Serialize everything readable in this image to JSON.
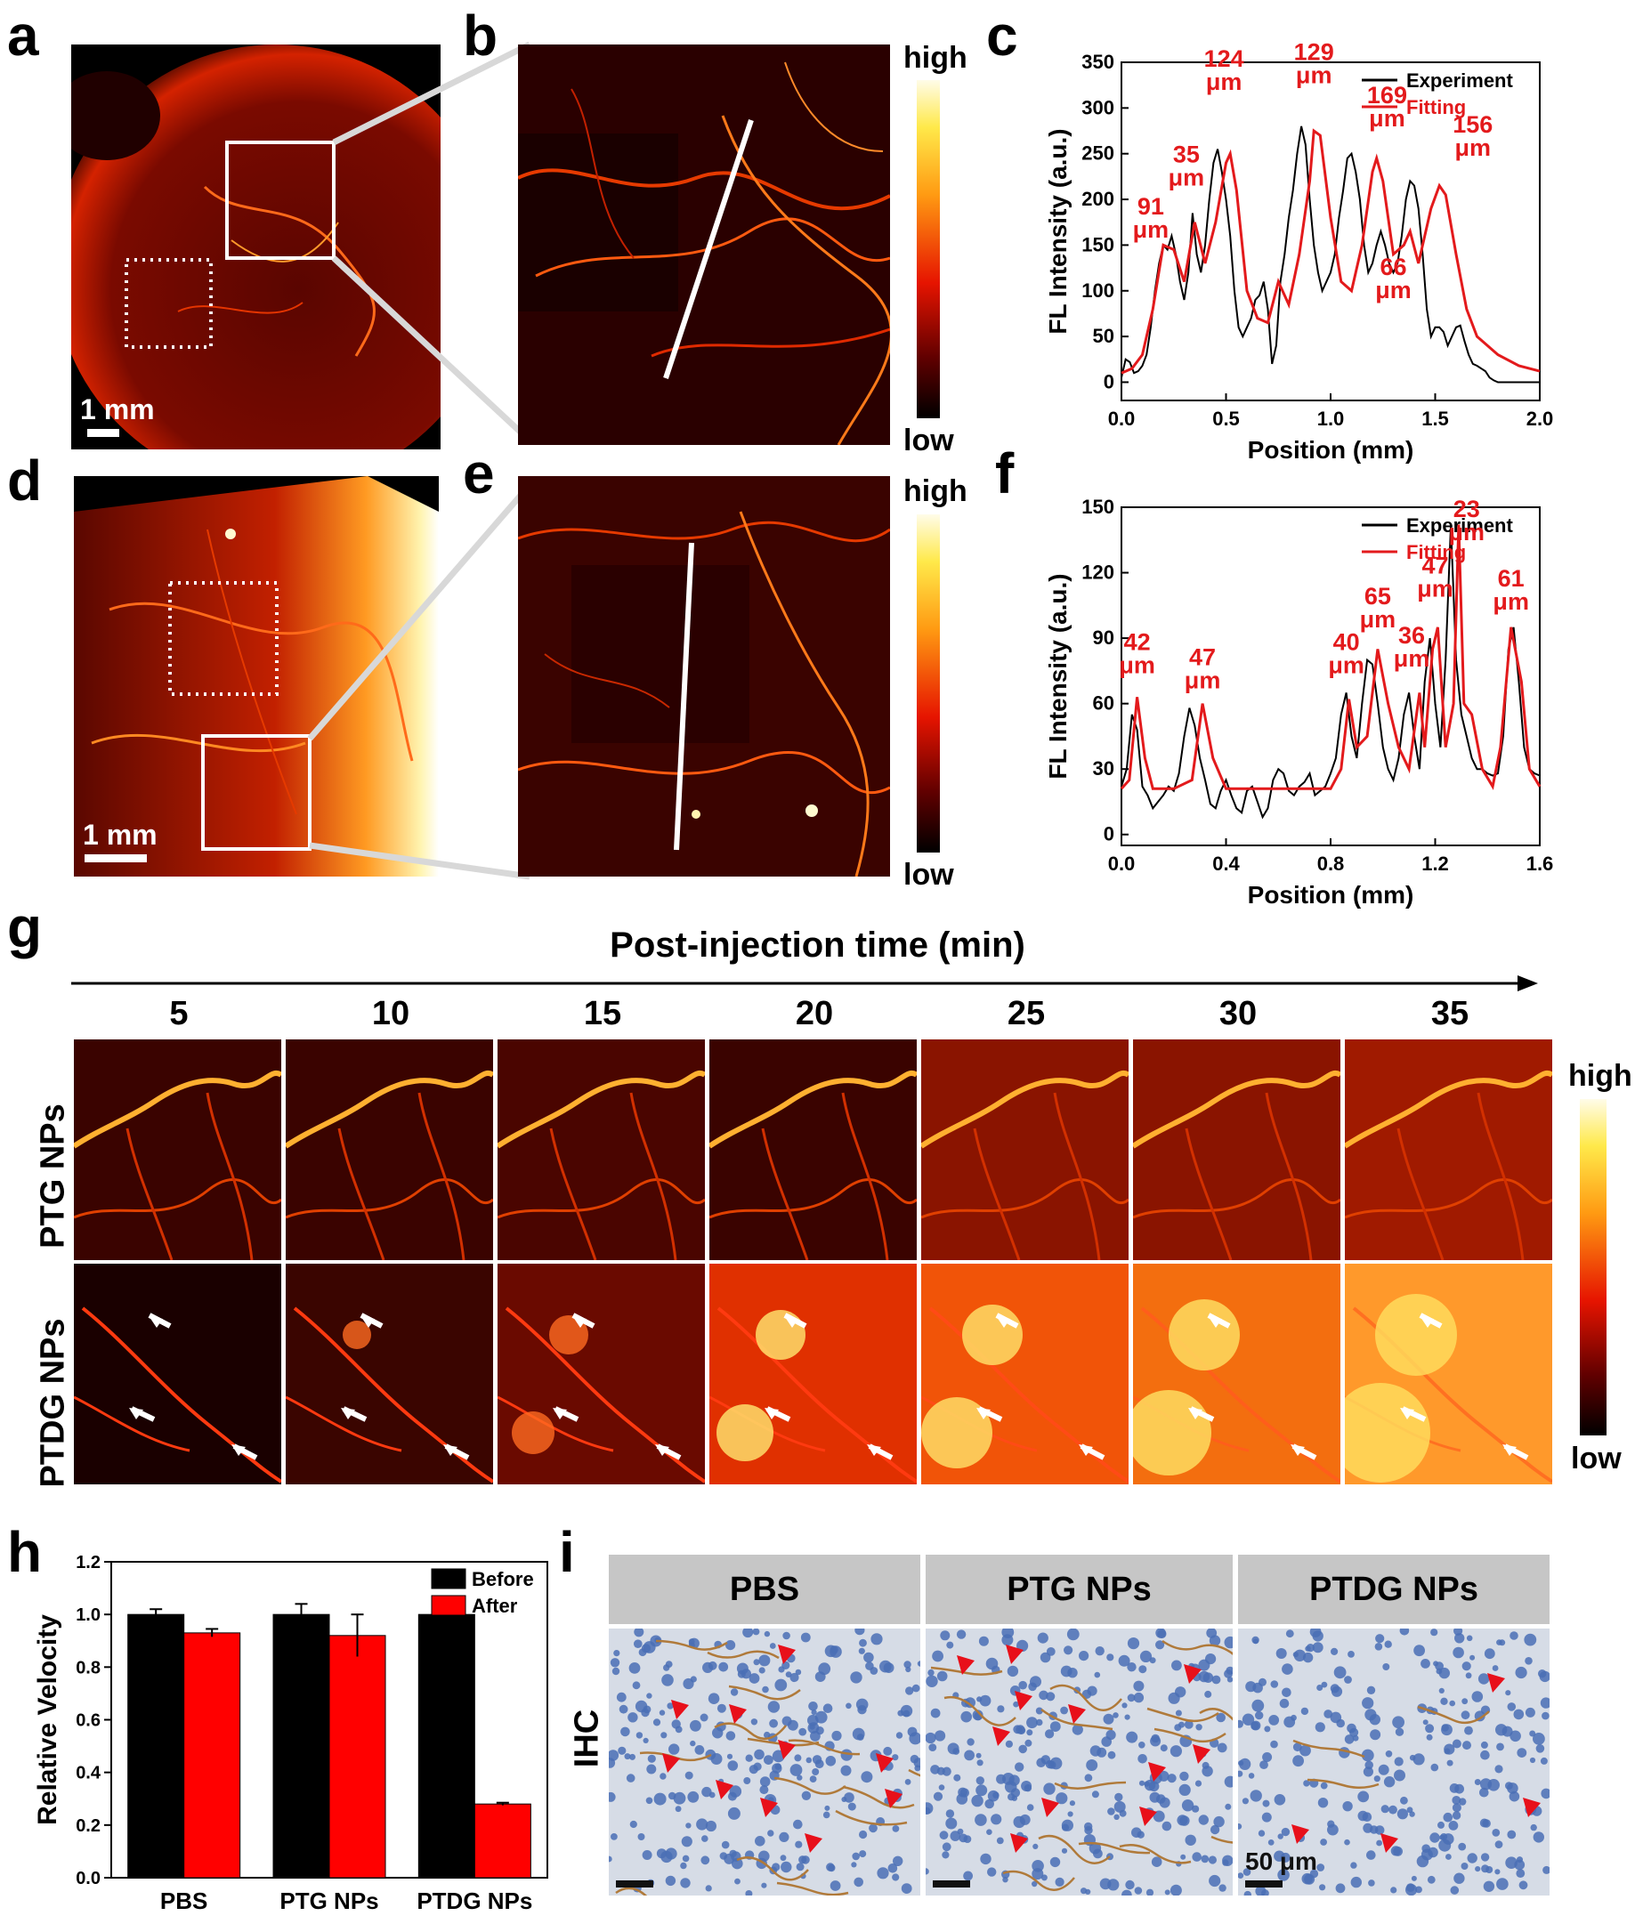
{
  "panels": {
    "a": "a",
    "b": "b",
    "c": "c",
    "d": "d",
    "e": "e",
    "f": "f",
    "g": "g",
    "h": "h",
    "i": "i"
  },
  "scalebars": {
    "a": "1 mm",
    "d": "1 mm",
    "ihc": "50 μm"
  },
  "colorbar": {
    "high": "high",
    "low": "low"
  },
  "colors": {
    "experiment": "#000000",
    "fitting": "#e31a1c",
    "annotation": "#e31a1c"
  },
  "panel_g": {
    "title": "Post-injection time (min)",
    "times": [
      "5",
      "10",
      "15",
      "20",
      "25",
      "30",
      "35"
    ],
    "rows": [
      "PTG NPs",
      "PTDG NPs"
    ]
  },
  "panel_i": {
    "columns": [
      "PBS",
      "PTG NPs",
      "PTDG NPs"
    ],
    "row_label": "IHC"
  },
  "chart_data": [
    {
      "panel": "c",
      "type": "line",
      "xlabel": "Position (mm)",
      "ylabel": "FL Intensity (a.u.)",
      "xlim": [
        0,
        2.0
      ],
      "ylim": [
        -20,
        350
      ],
      "xticks": [
        "0.0",
        "0.5",
        "1.0",
        "1.5",
        "2.0"
      ],
      "yticks": [
        "0",
        "50",
        "100",
        "150",
        "200",
        "250",
        "300",
        "350"
      ],
      "legend": [
        "Experiment",
        "Fitting"
      ],
      "annotations": [
        {
          "text": [
            "91",
            "μm"
          ],
          "x": 0.14,
          "y": 158
        },
        {
          "text": [
            "35",
            "μm"
          ],
          "x": 0.31,
          "y": 215
        },
        {
          "text": [
            "124",
            "μm"
          ],
          "x": 0.49,
          "y": 320
        },
        {
          "text": [
            "129",
            "μm"
          ],
          "x": 0.92,
          "y": 327
        },
        {
          "text": [
            "169",
            "μm"
          ],
          "x": 1.27,
          "y": 280
        },
        {
          "text": [
            "66",
            "μm"
          ],
          "x": 1.3,
          "y": 92
        },
        {
          "text": [
            "156",
            "μm"
          ],
          "x": 1.68,
          "y": 248
        }
      ],
      "series": [
        {
          "name": "Experiment",
          "x": [
            0.0,
            0.02,
            0.04,
            0.06,
            0.08,
            0.1,
            0.12,
            0.14,
            0.16,
            0.18,
            0.2,
            0.22,
            0.24,
            0.26,
            0.28,
            0.3,
            0.32,
            0.34,
            0.36,
            0.38,
            0.4,
            0.42,
            0.44,
            0.46,
            0.48,
            0.5,
            0.52,
            0.54,
            0.56,
            0.58,
            0.6,
            0.62,
            0.64,
            0.66,
            0.68,
            0.7,
            0.72,
            0.74,
            0.76,
            0.78,
            0.8,
            0.82,
            0.84,
            0.86,
            0.88,
            0.9,
            0.92,
            0.94,
            0.96,
            0.98,
            1.0,
            1.02,
            1.04,
            1.06,
            1.08,
            1.1,
            1.12,
            1.14,
            1.16,
            1.18,
            1.2,
            1.22,
            1.24,
            1.26,
            1.28,
            1.3,
            1.32,
            1.34,
            1.36,
            1.38,
            1.4,
            1.42,
            1.44,
            1.46,
            1.48,
            1.5,
            1.52,
            1.54,
            1.56,
            1.58,
            1.6,
            1.62,
            1.64,
            1.66,
            1.68,
            1.7,
            1.72,
            1.74,
            1.76,
            1.78,
            1.8,
            1.82,
            1.84,
            1.86,
            1.88,
            1.9,
            1.92,
            1.94,
            1.96,
            1.98,
            2.0
          ],
          "values": [
            5,
            25,
            22,
            10,
            12,
            18,
            30,
            60,
            100,
            130,
            150,
            145,
            160,
            140,
            110,
            90,
            120,
            185,
            140,
            120,
            150,
            200,
            240,
            255,
            230,
            200,
            160,
            100,
            60,
            50,
            60,
            70,
            90,
            95,
            110,
            80,
            20,
            40,
            110,
            140,
            180,
            210,
            250,
            280,
            260,
            200,
            150,
            120,
            100,
            110,
            120,
            140,
            180,
            210,
            245,
            250,
            230,
            200,
            150,
            120,
            130,
            150,
            165,
            150,
            130,
            120,
            130,
            160,
            200,
            220,
            215,
            190,
            140,
            80,
            50,
            60,
            60,
            55,
            40,
            50,
            60,
            62,
            45,
            30,
            20,
            18,
            15,
            12,
            5,
            2,
            0,
            0,
            0,
            0,
            0,
            0,
            0,
            0,
            0,
            0,
            0
          ]
        },
        {
          "name": "Fitting",
          "x": [
            0.0,
            0.05,
            0.1,
            0.15,
            0.2,
            0.25,
            0.3,
            0.35,
            0.4,
            0.45,
            0.5,
            0.52,
            0.55,
            0.6,
            0.65,
            0.7,
            0.75,
            0.8,
            0.85,
            0.9,
            0.92,
            0.95,
            1.0,
            1.05,
            1.1,
            1.15,
            1.2,
            1.22,
            1.25,
            1.3,
            1.35,
            1.38,
            1.42,
            1.48,
            1.52,
            1.55,
            1.6,
            1.65,
            1.7,
            1.8,
            1.9,
            2.0
          ],
          "values": [
            10,
            15,
            30,
            80,
            150,
            145,
            110,
            175,
            130,
            175,
            240,
            250,
            210,
            100,
            70,
            65,
            110,
            85,
            140,
            220,
            275,
            270,
            180,
            110,
            100,
            150,
            230,
            245,
            220,
            140,
            150,
            165,
            130,
            190,
            215,
            205,
            140,
            80,
            50,
            30,
            18,
            12
          ]
        }
      ]
    },
    {
      "panel": "f",
      "type": "line",
      "xlabel": "Position (mm)",
      "ylabel": "FL Intensity (a.u.)",
      "xlim": [
        0,
        1.6
      ],
      "ylim": [
        -5,
        150
      ],
      "xticks": [
        "0.0",
        "0.4",
        "0.8",
        "1.2",
        "1.6"
      ],
      "yticks": [
        "0",
        "30",
        "60",
        "90",
        "120",
        "150"
      ],
      "legend": [
        "Experiment",
        "Fitting"
      ],
      "annotations": [
        {
          "text": [
            "42",
            "μm"
          ],
          "x": 0.06,
          "y": 74
        },
        {
          "text": [
            "47",
            "μm"
          ],
          "x": 0.31,
          "y": 67
        },
        {
          "text": [
            "40",
            "μm"
          ],
          "x": 0.86,
          "y": 74
        },
        {
          "text": [
            "65",
            "μm"
          ],
          "x": 0.98,
          "y": 95
        },
        {
          "text": [
            "36",
            "μm"
          ],
          "x": 1.11,
          "y": 77
        },
        {
          "text": [
            "47",
            "μm"
          ],
          "x": 1.2,
          "y": 109
        },
        {
          "text": [
            "23",
            "μm"
          ],
          "x": 1.32,
          "y": 135
        },
        {
          "text": [
            "61",
            "μm"
          ],
          "x": 1.49,
          "y": 103
        }
      ],
      "series": [
        {
          "name": "Experiment",
          "x": [
            0.0,
            0.02,
            0.04,
            0.06,
            0.08,
            0.1,
            0.12,
            0.14,
            0.16,
            0.18,
            0.2,
            0.22,
            0.24,
            0.26,
            0.28,
            0.3,
            0.32,
            0.34,
            0.36,
            0.38,
            0.4,
            0.42,
            0.44,
            0.46,
            0.48,
            0.5,
            0.52,
            0.54,
            0.56,
            0.58,
            0.6,
            0.62,
            0.64,
            0.66,
            0.68,
            0.7,
            0.72,
            0.74,
            0.76,
            0.78,
            0.8,
            0.82,
            0.84,
            0.86,
            0.88,
            0.9,
            0.92,
            0.94,
            0.96,
            0.98,
            1.0,
            1.02,
            1.04,
            1.06,
            1.08,
            1.1,
            1.12,
            1.14,
            1.16,
            1.18,
            1.2,
            1.22,
            1.24,
            1.26,
            1.28,
            1.3,
            1.32,
            1.34,
            1.36,
            1.38,
            1.4,
            1.42,
            1.44,
            1.46,
            1.48,
            1.5,
            1.52,
            1.54,
            1.56,
            1.58,
            1.6
          ],
          "values": [
            22,
            30,
            55,
            48,
            22,
            18,
            12,
            15,
            18,
            22,
            20,
            28,
            45,
            58,
            50,
            35,
            25,
            14,
            12,
            20,
            25,
            18,
            12,
            10,
            20,
            22,
            15,
            8,
            12,
            25,
            30,
            28,
            20,
            18,
            22,
            24,
            28,
            18,
            20,
            22,
            28,
            35,
            55,
            65,
            45,
            35,
            60,
            80,
            78,
            60,
            40,
            30,
            25,
            35,
            55,
            65,
            45,
            30,
            70,
            90,
            60,
            40,
            80,
            142,
            80,
            55,
            45,
            35,
            30,
            30,
            28,
            27,
            28,
            45,
            85,
            95,
            70,
            40,
            30,
            28,
            27
          ]
        },
        {
          "name": "Fitting",
          "x": [
            0.0,
            0.03,
            0.06,
            0.09,
            0.12,
            0.2,
            0.27,
            0.31,
            0.35,
            0.4,
            0.6,
            0.8,
            0.84,
            0.87,
            0.9,
            0.94,
            0.98,
            1.02,
            1.06,
            1.1,
            1.14,
            1.16,
            1.19,
            1.21,
            1.24,
            1.27,
            1.29,
            1.31,
            1.34,
            1.38,
            1.42,
            1.45,
            1.49,
            1.53,
            1.56,
            1.6
          ],
          "values": [
            21,
            25,
            63,
            35,
            21,
            21,
            25,
            60,
            35,
            21,
            21,
            21,
            30,
            62,
            40,
            45,
            85,
            60,
            40,
            30,
            65,
            40,
            85,
            95,
            40,
            60,
            142,
            60,
            55,
            30,
            22,
            40,
            95,
            70,
            30,
            22
          ]
        }
      ]
    },
    {
      "panel": "h",
      "type": "bar",
      "ylabel": "Relative Velocity",
      "xlabel": "",
      "categories": [
        "PBS",
        "PTG NPs",
        "PTDG NPs"
      ],
      "ylim": [
        0,
        1.2
      ],
      "yticks": [
        "0.0",
        "0.2",
        "0.4",
        "0.6",
        "0.8",
        "1.0",
        "1.2"
      ],
      "series": [
        {
          "name": "Before",
          "color": "#000000",
          "values": [
            1.0,
            1.0,
            1.0
          ],
          "errors": [
            0.02,
            0.04,
            0.04
          ]
        },
        {
          "name": "After",
          "color": "#ff0000",
          "values": [
            0.93,
            0.92,
            0.28
          ],
          "errors": [
            0.015,
            0.08,
            0.005
          ]
        }
      ],
      "legend": "top-right"
    }
  ]
}
